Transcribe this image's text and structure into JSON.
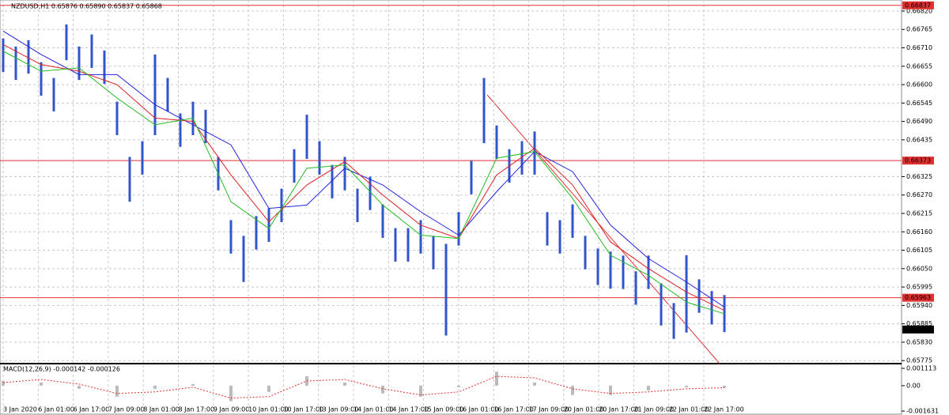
{
  "chart_data": {
    "type": "ohlc",
    "header": "NZDUSD,H1  0.65876 0.65890 0.65837 0.65868",
    "color": "#3355cc",
    "categories": [
      "3 Jan 2020",
      "6 Jan 01:00",
      "6 Jan 17:00",
      "7 Jan 09:00",
      "8 Jan 01:00",
      "8 Jan 17:00",
      "9 Jan 09:00",
      "10 Jan 01:00",
      "10 Jan 17:00",
      "13 Jan 09:00",
      "14 Jan 01:00",
      "14 Jan 17:00",
      "15 Jan 09:00",
      "16 Jan 01:00",
      "16 Jan 17:00",
      "17 Jan 09:00",
      "20 Jan 01:00",
      "20 Jan 17:00",
      "21 Jan 09:00",
      "22 Jan 01:00",
      "22 Jan 17:00"
    ],
    "high": [
      0.66738,
      0.66714,
      0.66733,
      0.66667,
      0.6662,
      0.6678,
      0.66714,
      0.6675,
      0.66702,
      0.66549,
      0.66384,
      0.66431,
      0.6669,
      0.6662,
      0.66514,
      0.66549,
      0.66525,
      0.66384,
      0.66195,
      0.66148,
      0.66207,
      0.6623,
      0.66289,
      0.66407,
      0.6651,
      0.66431,
      0.6636,
      0.66384,
      0.66289,
      0.66325,
      0.66242,
      0.66171,
      0.66171,
      0.66195,
      0.66148,
      0.66124,
      0.66219,
      0.66372,
      0.6662,
      0.66478,
      0.66407,
      0.66431,
      0.6646,
      0.66219,
      0.66195,
      0.66242,
      0.66148,
      0.6611,
      0.66101,
      0.66089,
      0.66042,
      0.66089,
      0.66006,
      0.65947,
      0.6609,
      0.66018,
      0.65983,
      0.65971
    ],
    "low": [
      0.66638,
      0.66614,
      0.66633,
      0.66567,
      0.6652,
      0.66673,
      0.66614,
      0.6665,
      0.66602,
      0.66449,
      0.6625,
      0.66331,
      0.66449,
      0.6652,
      0.66414,
      0.66449,
      0.66425,
      0.66284,
      0.66095,
      0.6601,
      0.66107,
      0.6613,
      0.66189,
      0.66307,
      0.66378,
      0.66331,
      0.6626,
      0.66284,
      0.66189,
      0.66225,
      0.66142,
      0.66071,
      0.66071,
      0.66095,
      0.66048,
      0.6585,
      0.66119,
      0.66272,
      0.66425,
      0.66378,
      0.66307,
      0.66331,
      0.66331,
      0.66119,
      0.66095,
      0.66142,
      0.66048,
      0.66001,
      0.6599,
      0.65989,
      0.65942,
      0.65989,
      0.6588,
      0.6584,
      0.65859,
      0.65918,
      0.65883,
      0.6586
    ],
    "ma_x": [
      0,
      3,
      6,
      9,
      12,
      15,
      18,
      21,
      24,
      27,
      30,
      33,
      36,
      39,
      42,
      45,
      48,
      51,
      54,
      57
    ],
    "ma": [
      {
        "color": "#2222dd",
        "values": [
          0.6676,
          0.6669,
          0.6663,
          0.6663,
          0.6654,
          0.6648,
          0.6642,
          0.6623,
          0.6624,
          0.6635,
          0.663,
          0.6622,
          0.6615,
          0.6628,
          0.664,
          0.6634,
          0.6618,
          0.6608,
          0.6601,
          0.65935
        ]
      },
      {
        "color": "#dd2222",
        "values": [
          0.6672,
          0.6666,
          0.6664,
          0.666,
          0.665,
          0.6649,
          0.6633,
          0.6619,
          0.663,
          0.6637,
          0.6627,
          0.6618,
          0.6614,
          0.6633,
          0.6641,
          0.663,
          0.6613,
          0.6605,
          0.6598,
          0.65925
        ]
      },
      {
        "color": "#22bb22",
        "values": [
          0.667,
          0.6664,
          0.6665,
          0.6656,
          0.6648,
          0.665,
          0.6625,
          0.6617,
          0.6635,
          0.6636,
          0.6624,
          0.6615,
          0.6614,
          0.6638,
          0.664,
          0.6626,
          0.6609,
          0.6603,
          0.6595,
          0.65915
        ]
      }
    ],
    "ylim": [
      0.65766,
      0.66853
    ],
    "yticks": [
      {
        "value": 0.6682,
        "label": "0.66820"
      },
      0.66765,
      {
        "value": 0.6671,
        "label": "0.66710"
      },
      0.66655,
      {
        "value": 0.666,
        "label": "0.66600"
      },
      0.66545,
      {
        "value": 0.6649,
        "label": "0.66490"
      },
      0.66435,
      0.66325,
      {
        "value": 0.6627,
        "label": "0.66270"
      },
      0.66215,
      {
        "value": 0.6616,
        "label": "0.66160"
      },
      0.66105,
      {
        "value": 0.6605,
        "label": "0.66050"
      },
      0.65995,
      {
        "value": 0.6594,
        "label": "0.65940"
      },
      0.65885,
      {
        "value": 0.6583,
        "label": "0.65830"
      },
      0.65775
    ],
    "levels": [
      0.66837,
      0.66373,
      0.65963
    ],
    "last_price": 0.65868,
    "grid": true,
    "macd": {
      "title": "MACD(12,26,9) -0.000142 -0.000126",
      "values": [
        0.0003,
        0.0002,
        -0.0002,
        -0.0007,
        -0.0002,
        0.0001,
        -0.001,
        -0.0004,
        0.0006,
        0.0002,
        -0.0005,
        -0.0007,
        -0.0001,
        0.0009,
        0.0002,
        -0.0006,
        -0.0006,
        -0.0003,
        -0.0001,
        -0.00014
      ],
      "signal": [
        0.0002,
        0.0004,
        0.0001,
        -0.0005,
        -0.0004,
        -0.0001,
        -0.0008,
        -0.0007,
        0.0003,
        0.0004,
        -0.0002,
        -0.0006,
        -0.0004,
        0.0006,
        0.0005,
        -0.0002,
        -0.0005,
        -0.0004,
        -0.0002,
        -0.00013
      ],
      "ylim": [
        -0.001834,
        0.001316
      ],
      "yticks": [
        0.001113,
        {
          "value": 0,
          "label": "0.00"
        },
        -0.001631
      ]
    }
  }
}
